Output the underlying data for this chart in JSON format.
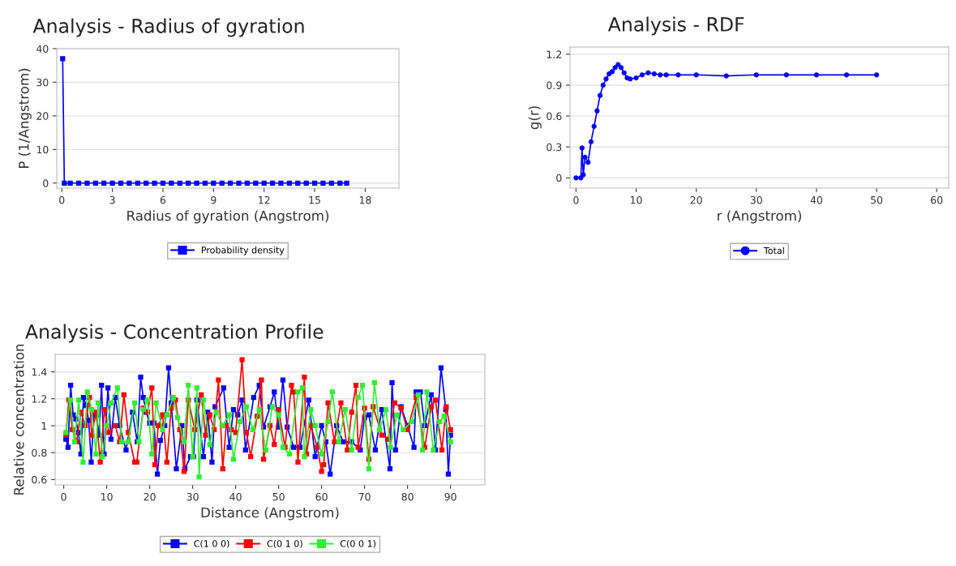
{
  "chart_data": [
    {
      "type": "line",
      "title": "Analysis - Radius of gyration",
      "xlabel": "Radius of gyration (Angstrom)",
      "ylabel": "P (1/Angstrom)",
      "xlim": [
        -0.3,
        20
      ],
      "xticks": [
        0,
        3,
        6,
        9,
        12,
        15,
        18
      ],
      "ylim": [
        -1.5,
        40
      ],
      "yticks": [
        0,
        10,
        20,
        30,
        40
      ],
      "grid": "y",
      "legend": "bottom",
      "marker": "square",
      "line_style": "solid",
      "series": [
        {
          "name": "Probability density",
          "color": "#0000ff",
          "x": [
            0.05,
            0.15,
            0.5,
            1,
            1.5,
            2,
            2.5,
            3,
            3.5,
            4,
            4.5,
            5,
            5.5,
            6,
            6.5,
            7,
            7.5,
            8,
            8.5,
            9,
            9.5,
            10,
            10.5,
            11,
            11.5,
            12,
            12.5,
            13,
            13.5,
            14,
            14.5,
            15,
            15.5,
            16,
            16.5,
            16.9
          ],
          "values": [
            37,
            0,
            0,
            0,
            0,
            0,
            0,
            0,
            0,
            0,
            0,
            0,
            0,
            0,
            0,
            0,
            0,
            0,
            0,
            0,
            0,
            0,
            0,
            0,
            0,
            0,
            0,
            0,
            0,
            0,
            0,
            0,
            0,
            0,
            0,
            0
          ]
        }
      ]
    },
    {
      "type": "line",
      "title": "Analysis - RDF",
      "xlabel": "r (Angstrom)",
      "ylabel": "g(r)",
      "xlim": [
        -1,
        62
      ],
      "xticks": [
        0,
        10,
        20,
        30,
        40,
        50,
        60
      ],
      "ylim": [
        -0.1,
        1.27
      ],
      "yticks": [
        0,
        0.3,
        0.6,
        0.9,
        1.2
      ],
      "grid": "y",
      "legend": "bottom",
      "marker": "circle",
      "line_style": "solid",
      "series": [
        {
          "name": "Total",
          "color": "#0000ff",
          "x": [
            0,
            0.8,
            1,
            1.2,
            1.5,
            2,
            2.5,
            3,
            3.5,
            4,
            4.5,
            5,
            5.5,
            6,
            6.5,
            7,
            7.5,
            8,
            8.5,
            9,
            10,
            11,
            12,
            13,
            14,
            15,
            17,
            20,
            25,
            30,
            35,
            40,
            45,
            50
          ],
          "values": [
            0,
            0,
            0.29,
            0.03,
            0.2,
            0.15,
            0.35,
            0.5,
            0.65,
            0.8,
            0.9,
            0.96,
            1.01,
            1.03,
            1.07,
            1.1,
            1.07,
            1.02,
            0.97,
            0.96,
            0.97,
            1.0,
            1.02,
            1.01,
            1.0,
            1.0,
            1.0,
            1.0,
            0.99,
            1.0,
            1.0,
            1.0,
            1.0,
            1.0
          ]
        }
      ]
    },
    {
      "type": "line",
      "title": "Analysis - Concentration Profile",
      "xlabel": "Distance (Angstrom)",
      "ylabel": "Relative concentration",
      "xlim": [
        -2,
        98
      ],
      "xticks": [
        0,
        10,
        20,
        30,
        40,
        50,
        60,
        70,
        80,
        90
      ],
      "ylim": [
        0.56,
        1.53
      ],
      "yticks": [
        0.6,
        0.8,
        1,
        1.2,
        1.4
      ],
      "grid": "y",
      "legend": "bottom",
      "marker": "square",
      "line_style": "solid",
      "series": [
        {
          "name": "C(1 0 0)",
          "color": "#0000ff",
          "x": [
            0.5,
            1,
            1.6,
            2.2,
            2.8,
            3.4,
            4,
            4.6,
            5.2,
            5.8,
            6.4,
            7,
            7.6,
            8.2,
            8.8,
            9.4,
            10.3,
            11,
            12,
            13,
            14.5,
            16,
            17.1,
            17.9,
            18.5,
            19.2,
            20,
            21,
            21.8,
            22.5,
            23.5,
            24.4,
            25,
            26.2,
            27.5,
            28.2,
            29.5,
            30.2,
            31,
            32.5,
            33.5,
            34.5,
            35.2,
            37.2,
            38.5,
            39.5,
            40.5,
            41.5,
            42.3,
            44.2,
            45.5,
            46.5,
            48,
            49,
            50,
            51,
            52,
            53.5,
            55,
            57,
            58.5,
            60,
            61,
            62,
            63.5,
            65,
            67,
            69,
            70,
            71,
            72.5,
            74,
            75.9,
            76.4,
            77.2,
            78.5,
            80,
            81.5,
            82,
            83,
            84,
            85.5,
            86.5,
            87.8,
            88.9,
            89.5,
            90
          ],
          "values": [
            0.9,
            0.84,
            1.3,
            1.08,
            1.05,
            0.95,
            0.79,
            1.21,
            1.15,
            1.04,
            0.73,
            1.08,
            1.08,
            0.93,
            1.3,
            0.79,
            1.28,
            0.9,
            1.21,
            1.0,
            0.82,
            1.1,
            0.88,
            1.36,
            1.21,
            1.1,
            1.02,
            1.02,
            0.64,
            0.89,
            1.0,
            1.43,
            1.17,
            0.68,
            1.0,
            0.68,
            0.77,
            0.77,
            1.19,
            0.77,
            1.1,
            0.73,
            1.14,
            1.28,
            0.84,
            1.12,
            1.08,
            1.19,
            0.82,
            1.21,
            1.3,
            0.99,
            1.14,
            1.25,
            0.99,
            1.34,
            0.99,
            0.84,
            0.84,
            1.19,
            0.77,
            1.0,
            0.88,
            0.64,
            1.0,
            0.88,
            0.88,
            0.82,
            1.06,
            1.08,
            0.82,
            1.12,
            0.68,
            1.32,
            0.82,
            1.14,
            1.0,
            0.84,
            1.25,
            1.25,
            1.0,
            1.23,
            0.82,
            1.43,
            1.12,
            0.64,
            0.93
          ]
        },
        {
          "name": "C(0 1 0)",
          "color": "#ff0000",
          "x": [
            0.5,
            1.2,
            2,
            3,
            4,
            5,
            6,
            6.5,
            7.5,
            8.5,
            9.5,
            10.5,
            12,
            13,
            14,
            15,
            16.5,
            17,
            18.5,
            19.5,
            20.5,
            21.2,
            22,
            23,
            24,
            25,
            26,
            27,
            28,
            29,
            30.5,
            32,
            33,
            34,
            35,
            36,
            37,
            37.8,
            39,
            40,
            41.5,
            42.5,
            43.5,
            45,
            46,
            46.5,
            48,
            49,
            50,
            51.5,
            53,
            53.5,
            54.5,
            56,
            56.5,
            57.5,
            59,
            60,
            60.5,
            61.5,
            63,
            64.5,
            66,
            67,
            68,
            68.5,
            70,
            71,
            72,
            74,
            75.5,
            77,
            78.5,
            80,
            82,
            84,
            85.5,
            86.5,
            88,
            89,
            90
          ],
          "values": [
            0.93,
            1.19,
            0.97,
            0.88,
            1.1,
            1.0,
            1.21,
            0.93,
            1.1,
            0.73,
            1.12,
            0.95,
            1.0,
            0.88,
            1.23,
            0.95,
            0.73,
            0.73,
            1.13,
            1.1,
            1.28,
            0.71,
            1.0,
            1.08,
            0.73,
            1.13,
            1.19,
            0.97,
            0.66,
            1.19,
            0.97,
            1.23,
            0.93,
            1.08,
            0.97,
            1.34,
            0.68,
            1.0,
            0.97,
            0.95,
            1.49,
            0.95,
            0.77,
            1.07,
            1.34,
            0.75,
            1.0,
            0.86,
            1.12,
            0.84,
            1.3,
            1.25,
            0.73,
            1.36,
            0.79,
            1.0,
            0.84,
            0.66,
            0.71,
            1.17,
            0.88,
            1.17,
            0.82,
            1.1,
            1.3,
            0.84,
            1.13,
            0.75,
            1.14,
            0.93,
            0.9,
            1.17,
            1.13,
            0.97,
            1.21,
            0.84,
            1.14,
            1.19,
            0.82,
            1.14,
            0.97
          ]
        },
        {
          "name": "C(0 0 1)",
          "color": "#33ee33",
          "x": [
            0.5,
            1.5,
            2.5,
            3.5,
            4.5,
            5.5,
            6.5,
            7.5,
            8,
            9,
            10,
            11,
            12.5,
            13.5,
            15,
            16.5,
            17.5,
            18.5,
            19.5,
            20.5,
            21.5,
            23,
            24,
            25.5,
            26.5,
            28,
            29,
            30,
            31,
            31.5,
            32.5,
            34,
            35.5,
            37,
            38.5,
            39.5,
            41,
            42.5,
            44,
            45.5,
            47,
            48.5,
            50,
            51,
            52.5,
            54.5,
            55.5,
            56,
            57.5,
            58.5,
            60,
            61.5,
            62.5,
            64,
            65.5,
            67,
            68.5,
            69.5,
            71,
            72.3,
            73.5,
            75,
            76,
            77.5,
            79,
            81,
            82.5,
            83.5,
            84.5,
            86,
            87.5,
            88.5,
            90
          ],
          "values": [
            0.95,
            1.19,
            0.88,
            1.19,
            0.73,
            1.25,
            1.12,
            0.79,
            1.17,
            0.77,
            1.0,
            1.17,
            1.28,
            0.88,
            0.88,
            1.17,
            0.88,
            1.12,
            1.19,
            0.79,
            1.17,
            0.97,
            1.08,
            1.21,
            1.06,
            0.88,
            1.3,
            0.77,
            1.28,
            0.62,
            1.19,
            0.86,
            1.1,
            1.0,
            1.08,
            0.75,
            1.03,
            1.14,
            0.97,
            1.12,
            0.82,
            1.14,
            1.08,
            0.84,
            0.79,
            1.25,
            1.28,
            0.77,
            1.12,
            1.0,
            0.79,
            1.03,
            1.25,
            0.88,
            1.12,
            0.82,
            1.21,
            1.3,
            0.68,
            1.32,
            0.97,
            1.12,
            0.84,
            1.08,
            0.97,
            1.03,
            1.23,
            0.82,
            1.25,
            0.82,
            1.03,
            1.07,
            0.88
          ]
        }
      ]
    }
  ]
}
